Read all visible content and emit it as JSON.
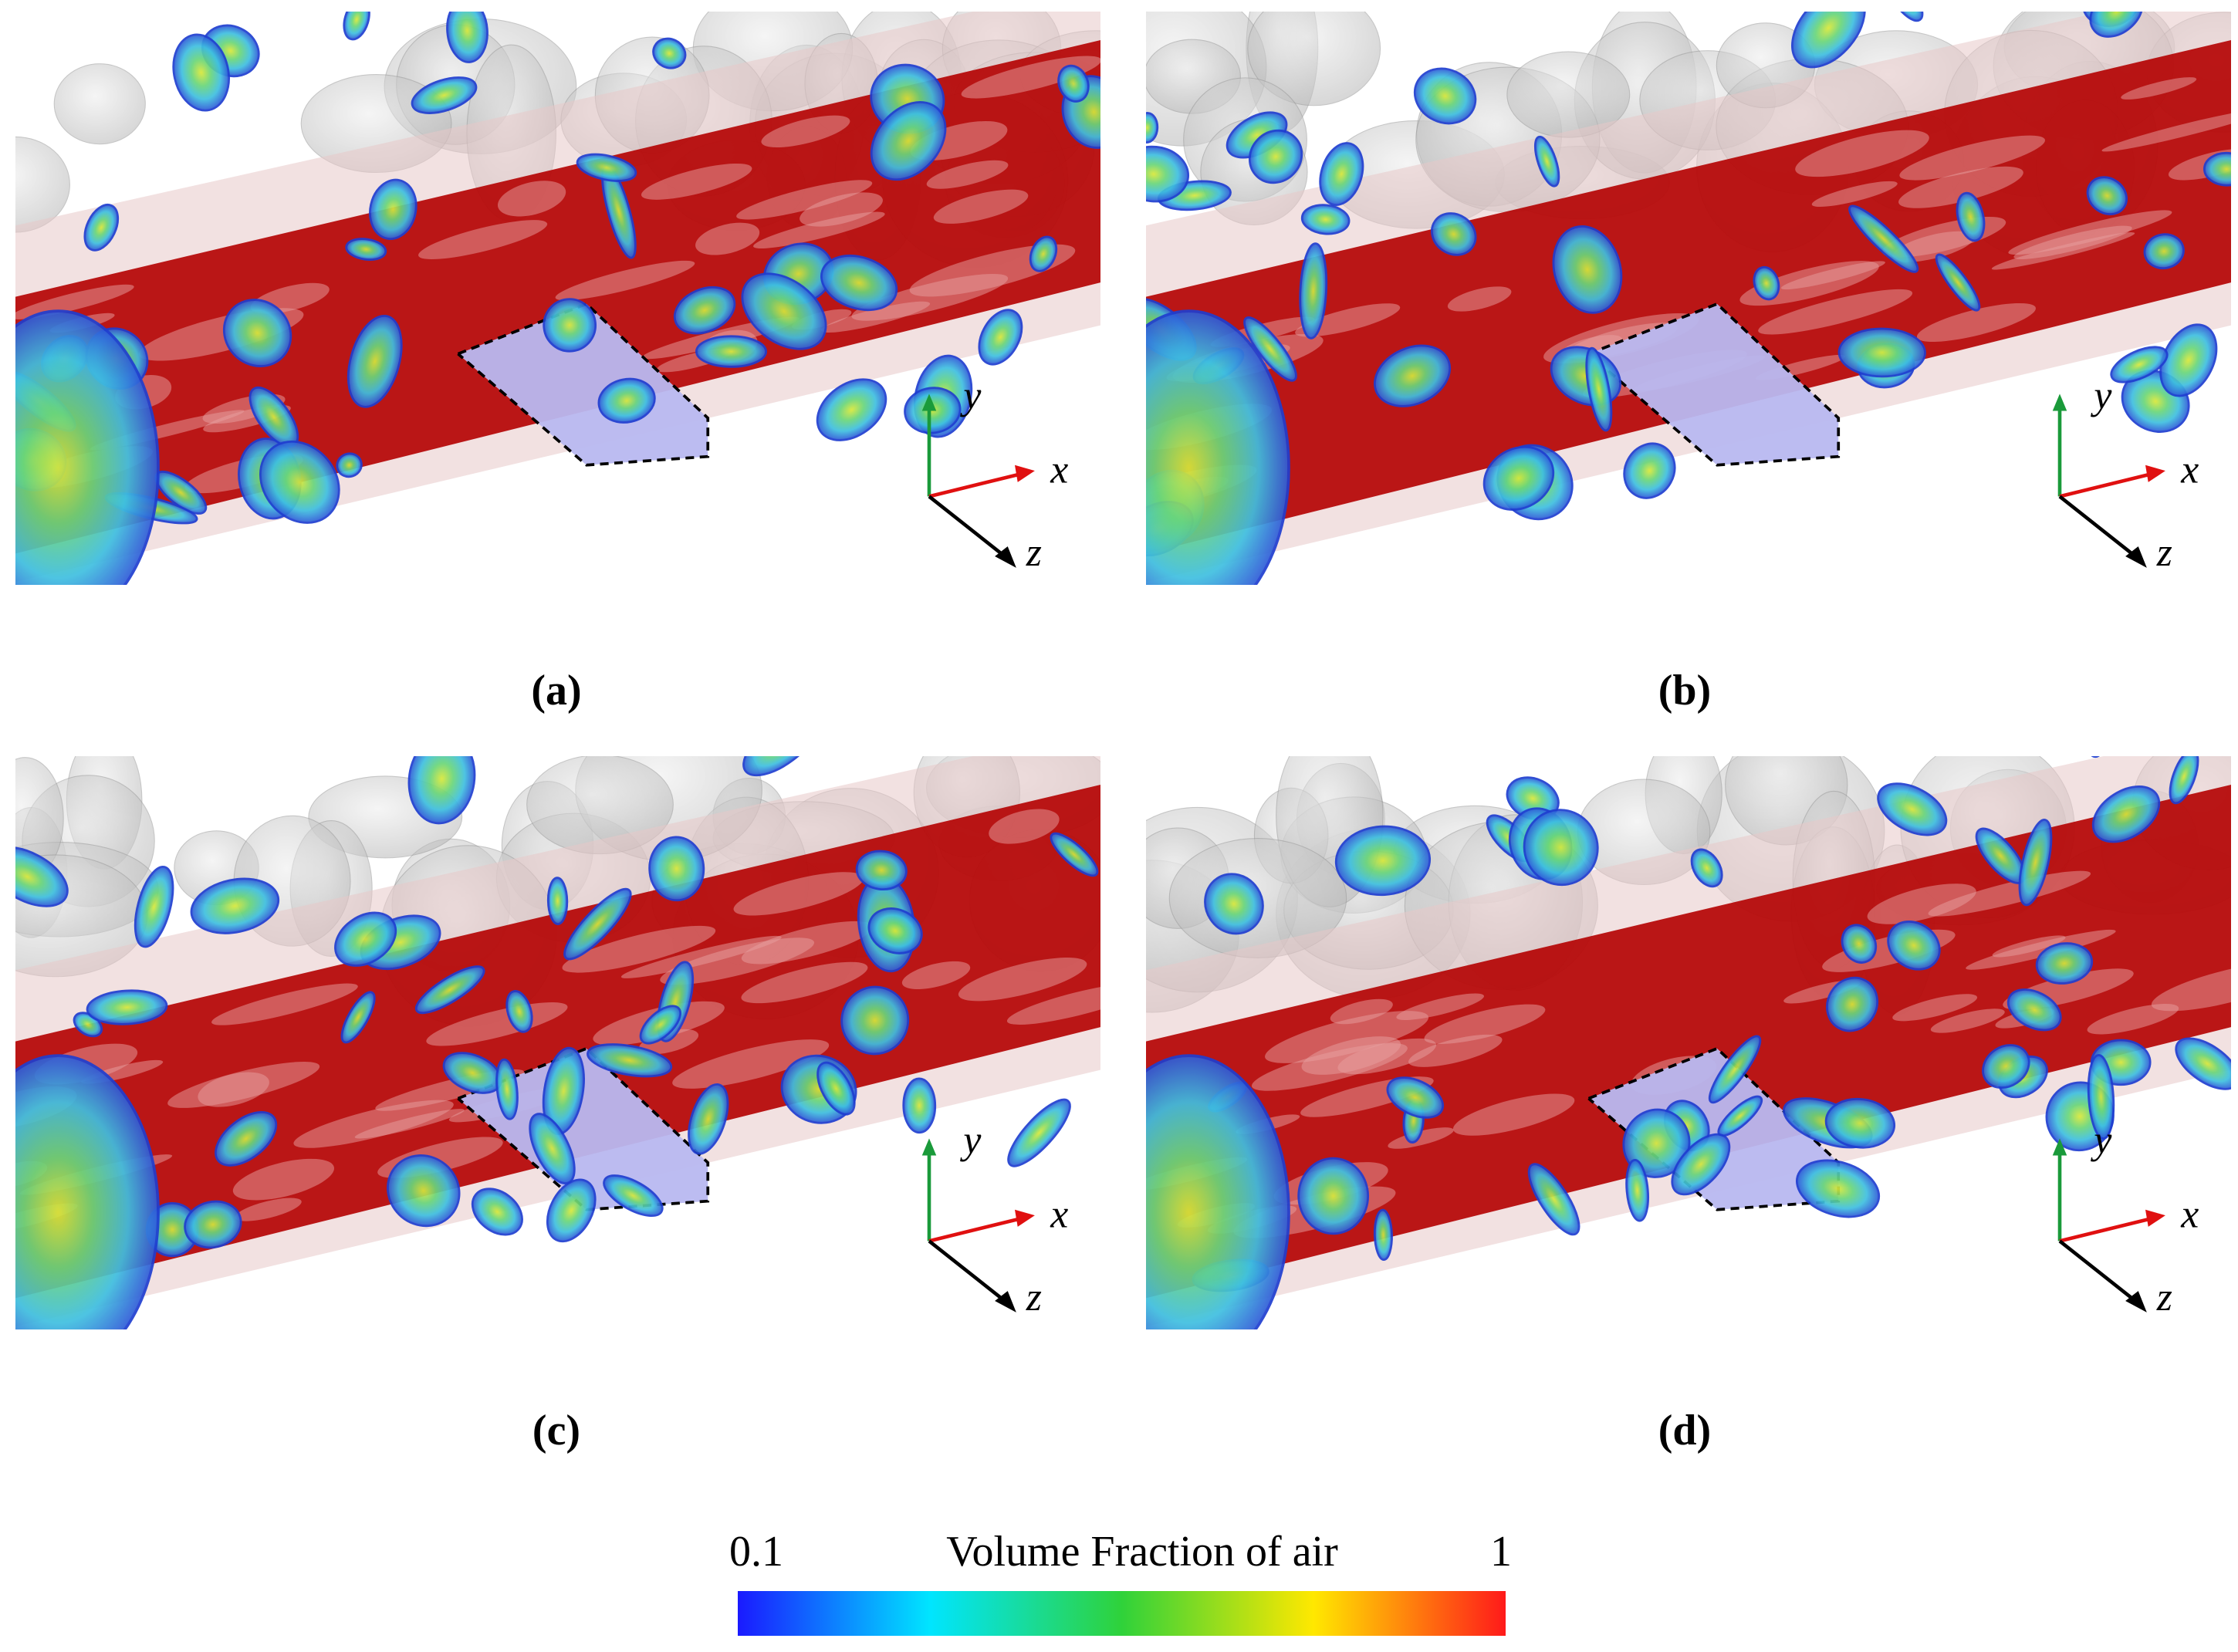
{
  "panels": [
    {
      "label": "(a)",
      "axis_labels": [
        "x",
        "y",
        "z"
      ]
    },
    {
      "label": "(b)",
      "axis_labels": [
        "x",
        "y",
        "z"
      ]
    },
    {
      "label": "(c)",
      "axis_labels": [
        "x",
        "y",
        "z"
      ]
    },
    {
      "label": "(d)",
      "axis_labels": [
        "x",
        "y",
        "z"
      ]
    }
  ],
  "colorbar": {
    "title": "Volume Fraction of air",
    "min": 0.1,
    "max": 1
  }
}
